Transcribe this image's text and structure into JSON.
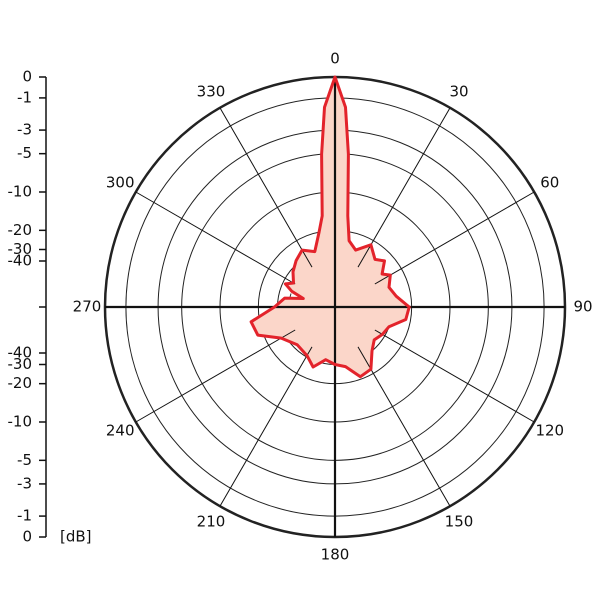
{
  "chart_data": {
    "type": "polar",
    "angle_ticks": [
      0,
      30,
      60,
      90,
      120,
      150,
      180,
      210,
      240,
      270,
      300,
      330
    ],
    "yticks": [
      0,
      -1,
      -3,
      -5,
      -10,
      -20,
      -30,
      -40
    ],
    "y_label": "[dB]",
    "color": "#e3232b",
    "fill": "#fbd6c9",
    "angles": [
      0,
      3,
      5,
      8,
      12,
      20,
      30,
      40,
      47,
      55,
      60,
      70,
      80,
      90,
      100,
      110,
      120,
      130,
      140,
      150,
      160,
      170,
      180,
      190,
      200,
      210,
      225,
      240,
      250,
      260,
      270,
      280,
      285,
      290,
      295,
      300,
      310,
      320,
      330,
      340,
      348,
      352,
      355,
      357
    ],
    "values": [
      0,
      -1.5,
      -5,
      -15,
      -24,
      -28,
      -22,
      -27,
      -24,
      -30,
      -26,
      -30,
      -27,
      -21,
      -22,
      -30,
      -32,
      -35,
      -30,
      -22,
      -21,
      -28,
      -30,
      -33,
      -26,
      -31,
      -33,
      -27,
      -18,
      -17,
      -28,
      -35,
      -60,
      -40,
      -32,
      -38,
      -32,
      -28,
      -25,
      -29,
      -20,
      -15,
      -5,
      -1.5
    ],
    "grid": true
  }
}
